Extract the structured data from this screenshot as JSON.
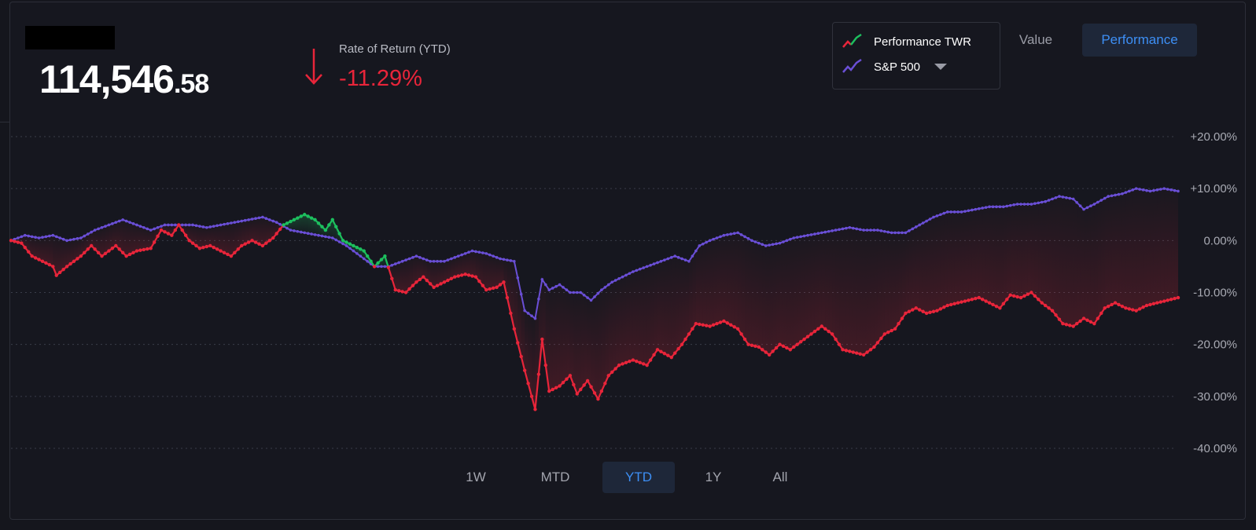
{
  "header": {
    "balance_int": "114,546",
    "balance_dec": ".58",
    "rate_label": "Rate of Return (YTD)",
    "rate_value": "-11.29%"
  },
  "legend": {
    "items": [
      {
        "label": "Performance TWR",
        "icon": "red-green-line-icon"
      },
      {
        "label": "S&P 500",
        "icon": "purple-line-icon"
      }
    ]
  },
  "view_toggle": {
    "value_label": "Value",
    "performance_label": "Performance",
    "selected": "Performance"
  },
  "range_tabs": {
    "items": [
      "1W",
      "MTD",
      "YTD",
      "1Y",
      "All"
    ],
    "selected": "YTD"
  },
  "colors": {
    "background": "#16171f",
    "negative": "#e8253a",
    "positive": "#1dbf5e",
    "benchmark": "#6a4fd6",
    "accent": "#3d8ff5"
  },
  "chart_data": {
    "type": "line",
    "ylim": [
      -40,
      20
    ],
    "yticks": [
      "+20.00%",
      "+10.00%",
      "0.00%",
      "-10.00%",
      "-20.00%",
      "-30.00%",
      "-40.00%"
    ],
    "grid": true,
    "x_points": 196,
    "series": [
      {
        "name": "Performance TWR",
        "color_above_benchmark": "#1dbf5e",
        "color_below_benchmark": "#e8253a",
        "key": [
          [
            0,
            0
          ],
          [
            3,
            -0.5
          ],
          [
            6,
            -3
          ],
          [
            9,
            -4
          ],
          [
            12,
            -5
          ],
          [
            13,
            -6.7
          ],
          [
            16,
            -5
          ],
          [
            20,
            -3
          ],
          [
            23,
            -1
          ],
          [
            26,
            -3
          ],
          [
            30,
            -1
          ],
          [
            33,
            -3
          ],
          [
            36,
            -2
          ],
          [
            40,
            -1.5
          ],
          [
            43,
            2
          ],
          [
            46,
            1
          ],
          [
            48,
            3
          ],
          [
            51,
            0
          ],
          [
            54,
            -1.5
          ],
          [
            57,
            -1
          ],
          [
            60,
            -2
          ],
          [
            63,
            -3
          ],
          [
            66,
            -1
          ],
          [
            69,
            0
          ],
          [
            72,
            -1
          ],
          [
            75,
            0.5
          ],
          [
            78,
            3
          ],
          [
            81,
            4
          ],
          [
            84,
            5
          ],
          [
            87,
            4
          ],
          [
            90,
            2
          ],
          [
            92,
            4
          ],
          [
            95,
            0
          ],
          [
            98,
            -1
          ],
          [
            101,
            -2
          ],
          [
            104,
            -5
          ],
          [
            107,
            -3
          ],
          [
            110,
            -9.5
          ],
          [
            113,
            -10
          ],
          [
            116,
            -8
          ],
          [
            118,
            -7
          ],
          [
            121,
            -9
          ],
          [
            124,
            -8
          ],
          [
            127,
            -7
          ],
          [
            130,
            -6.5
          ],
          [
            133,
            -7
          ],
          [
            136,
            -9.5
          ],
          [
            139,
            -9
          ],
          [
            141,
            -8
          ],
          [
            144,
            -17
          ],
          [
            147,
            -25
          ],
          [
            150,
            -32.5
          ],
          [
            152,
            -19
          ],
          [
            154,
            -29
          ],
          [
            157,
            -28
          ],
          [
            160,
            -26
          ],
          [
            162,
            -29.5
          ],
          [
            165,
            -27
          ],
          [
            168,
            -30.5
          ],
          [
            171,
            -26
          ],
          [
            174,
            -24
          ],
          [
            178,
            -23
          ],
          [
            182,
            -24
          ],
          [
            185,
            -21
          ],
          [
            189,
            -22.5
          ],
          [
            192,
            -20
          ],
          [
            196,
            -16
          ],
          [
            200,
            -16.5
          ],
          [
            204,
            -15.5
          ],
          [
            208,
            -17
          ],
          [
            211,
            -20
          ],
          [
            214,
            -20.5
          ],
          [
            217,
            -22
          ],
          [
            220,
            -20
          ],
          [
            223,
            -21
          ],
          [
            226,
            -19.5
          ],
          [
            229,
            -18
          ],
          [
            232,
            -16.5
          ],
          [
            235,
            -18
          ],
          [
            238,
            -21
          ],
          [
            241,
            -21.5
          ],
          [
            244,
            -22
          ],
          [
            247,
            -20.5
          ],
          [
            250,
            -18
          ],
          [
            253,
            -17
          ],
          [
            256,
            -14
          ],
          [
            259,
            -13
          ],
          [
            262,
            -14
          ],
          [
            265,
            -13.5
          ],
          [
            268,
            -12.5
          ],
          [
            271,
            -12
          ],
          [
            274,
            -11.5
          ],
          [
            277,
            -11
          ],
          [
            280,
            -12
          ],
          [
            283,
            -13
          ],
          [
            286,
            -10.5
          ],
          [
            289,
            -11
          ],
          [
            292,
            -10
          ],
          [
            295,
            -12
          ],
          [
            298,
            -13.5
          ],
          [
            301,
            -16
          ],
          [
            304,
            -16.5
          ],
          [
            307,
            -15
          ],
          [
            310,
            -16
          ],
          [
            313,
            -13
          ],
          [
            316,
            -12
          ],
          [
            319,
            -13
          ],
          [
            322,
            -13.5
          ],
          [
            325,
            -12.5
          ],
          [
            328,
            -12
          ],
          [
            331,
            -11.5
          ],
          [
            334,
            -11
          ]
        ]
      },
      {
        "name": "S&P 500",
        "color": "#6a4fd6",
        "key": [
          [
            0,
            0
          ],
          [
            4,
            1
          ],
          [
            8,
            0.5
          ],
          [
            12,
            1
          ],
          [
            16,
            0
          ],
          [
            20,
            0.5
          ],
          [
            24,
            2
          ],
          [
            28,
            3
          ],
          [
            32,
            4
          ],
          [
            36,
            3
          ],
          [
            40,
            2
          ],
          [
            44,
            3
          ],
          [
            48,
            3
          ],
          [
            52,
            3
          ],
          [
            56,
            2.5
          ],
          [
            60,
            3
          ],
          [
            64,
            3.5
          ],
          [
            68,
            4
          ],
          [
            72,
            4.5
          ],
          [
            76,
            3.5
          ],
          [
            80,
            2
          ],
          [
            84,
            1.5
          ],
          [
            88,
            1
          ],
          [
            92,
            0.5
          ],
          [
            96,
            -1
          ],
          [
            100,
            -3
          ],
          [
            104,
            -5
          ],
          [
            108,
            -5
          ],
          [
            112,
            -4
          ],
          [
            116,
            -3
          ],
          [
            120,
            -4
          ],
          [
            124,
            -4
          ],
          [
            128,
            -3
          ],
          [
            132,
            -2
          ],
          [
            136,
            -2.5
          ],
          [
            140,
            -3.5
          ],
          [
            144,
            -4
          ],
          [
            147,
            -13.5
          ],
          [
            150,
            -15
          ],
          [
            152,
            -7.5
          ],
          [
            154,
            -9.5
          ],
          [
            157,
            -8.5
          ],
          [
            160,
            -10
          ],
          [
            163,
            -10
          ],
          [
            166,
            -11.5
          ],
          [
            169,
            -9.5
          ],
          [
            172,
            -8
          ],
          [
            175,
            -7
          ],
          [
            178,
            -6
          ],
          [
            182,
            -5
          ],
          [
            186,
            -4
          ],
          [
            190,
            -3
          ],
          [
            194,
            -4
          ],
          [
            197,
            -1
          ],
          [
            200,
            0
          ],
          [
            204,
            1
          ],
          [
            208,
            1.5
          ],
          [
            212,
            0
          ],
          [
            216,
            -1
          ],
          [
            220,
            -0.5
          ],
          [
            224,
            0.5
          ],
          [
            228,
            1
          ],
          [
            232,
            1.5
          ],
          [
            236,
            2
          ],
          [
            240,
            2.5
          ],
          [
            244,
            2
          ],
          [
            248,
            2
          ],
          [
            252,
            1.5
          ],
          [
            256,
            1.5
          ],
          [
            260,
            3
          ],
          [
            264,
            4.5
          ],
          [
            268,
            5.5
          ],
          [
            272,
            5.5
          ],
          [
            276,
            6
          ],
          [
            280,
            6.5
          ],
          [
            284,
            6.5
          ],
          [
            288,
            7
          ],
          [
            292,
            7
          ],
          [
            296,
            7.5
          ],
          [
            300,
            8.5
          ],
          [
            304,
            8
          ],
          [
            307,
            6
          ],
          [
            310,
            7
          ],
          [
            314,
            8.5
          ],
          [
            318,
            9
          ],
          [
            322,
            10
          ],
          [
            326,
            9.5
          ],
          [
            330,
            10
          ],
          [
            334,
            9.5
          ]
        ]
      }
    ]
  }
}
